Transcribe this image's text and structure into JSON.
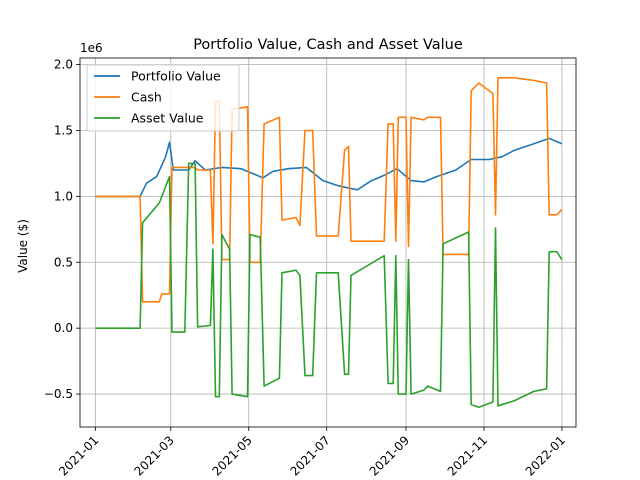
{
  "chart_data": {
    "type": "line",
    "title": "Portfolio Value, Cash and Asset Value",
    "xlabel": "",
    "ylabel": "Value ($)",
    "y_offset_text": "1e6",
    "xlim": [
      "2020-12-20",
      "2022-01-12"
    ],
    "ylim": [
      -0.75,
      2.05
    ],
    "y_ticks": [
      -0.5,
      0.0,
      0.5,
      1.0,
      1.5,
      2.0
    ],
    "y_tick_labels": [
      "−0.5",
      "0.0",
      "0.5",
      "1.0",
      "1.5",
      "2.0"
    ],
    "x_ticks": [
      "2021-01-01",
      "2021-03-01",
      "2021-05-01",
      "2021-07-01",
      "2021-09-01",
      "2021-11-01",
      "2022-01-01"
    ],
    "x_tick_labels": [
      "2021-01",
      "2021-03",
      "2021-05",
      "2021-07",
      "2021-09",
      "2021-11",
      "2022-01"
    ],
    "grid": true,
    "legend_position": "upper-left",
    "series": [
      {
        "name": "Portfolio Value",
        "color": "#1f77b4",
        "points": [
          [
            "2021-01-01",
            1.0
          ],
          [
            "2021-02-05",
            1.0
          ],
          [
            "2021-02-10",
            1.1
          ],
          [
            "2021-02-18",
            1.15
          ],
          [
            "2021-02-25",
            1.3
          ],
          [
            "2021-02-28",
            1.41
          ],
          [
            "2021-03-03",
            1.2
          ],
          [
            "2021-03-15",
            1.2
          ],
          [
            "2021-03-20",
            1.27
          ],
          [
            "2021-03-28",
            1.2
          ],
          [
            "2021-04-10",
            1.22
          ],
          [
            "2021-04-25",
            1.21
          ],
          [
            "2021-05-05",
            1.17
          ],
          [
            "2021-05-12",
            1.14
          ],
          [
            "2021-05-20",
            1.19
          ],
          [
            "2021-06-01",
            1.21
          ],
          [
            "2021-06-15",
            1.22
          ],
          [
            "2021-06-28",
            1.12
          ],
          [
            "2021-07-10",
            1.08
          ],
          [
            "2021-07-25",
            1.05
          ],
          [
            "2021-08-05",
            1.12
          ],
          [
            "2021-08-15",
            1.16
          ],
          [
            "2021-08-25",
            1.21
          ],
          [
            "2021-09-05",
            1.12
          ],
          [
            "2021-09-15",
            1.11
          ],
          [
            "2021-09-25",
            1.15
          ],
          [
            "2021-10-10",
            1.2
          ],
          [
            "2021-10-22",
            1.28
          ],
          [
            "2021-11-05",
            1.28
          ],
          [
            "2021-11-15",
            1.3
          ],
          [
            "2021-11-25",
            1.35
          ],
          [
            "2021-12-10",
            1.4
          ],
          [
            "2021-12-22",
            1.44
          ],
          [
            "2022-01-01",
            1.4
          ]
        ]
      },
      {
        "name": "Cash",
        "color": "#ff7f0e",
        "points": [
          [
            "2021-01-01",
            1.0
          ],
          [
            "2021-02-05",
            1.0
          ],
          [
            "2021-02-07",
            0.2
          ],
          [
            "2021-02-20",
            0.2
          ],
          [
            "2021-02-22",
            0.26
          ],
          [
            "2021-02-28",
            0.26
          ],
          [
            "2021-03-02",
            1.22
          ],
          [
            "2021-03-20",
            1.22
          ],
          [
            "2021-03-22",
            1.2
          ],
          [
            "2021-04-01",
            1.2
          ],
          [
            "2021-04-03",
            0.64
          ],
          [
            "2021-04-05",
            1.72
          ],
          [
            "2021-04-08",
            1.72
          ],
          [
            "2021-04-10",
            0.52
          ],
          [
            "2021-04-16",
            0.52
          ],
          [
            "2021-04-18",
            1.66
          ],
          [
            "2021-04-30",
            1.68
          ],
          [
            "2021-05-02",
            0.5
          ],
          [
            "2021-05-10",
            0.5
          ],
          [
            "2021-05-13",
            1.55
          ],
          [
            "2021-05-25",
            1.6
          ],
          [
            "2021-05-27",
            0.82
          ],
          [
            "2021-06-07",
            0.84
          ],
          [
            "2021-06-10",
            0.78
          ],
          [
            "2021-06-14",
            1.5
          ],
          [
            "2021-06-20",
            1.5
          ],
          [
            "2021-06-23",
            0.7
          ],
          [
            "2021-07-10",
            0.7
          ],
          [
            "2021-07-15",
            1.35
          ],
          [
            "2021-07-18",
            1.38
          ],
          [
            "2021-07-20",
            0.66
          ],
          [
            "2021-08-15",
            0.66
          ],
          [
            "2021-08-18",
            1.55
          ],
          [
            "2021-08-22",
            1.55
          ],
          [
            "2021-08-24",
            0.66
          ],
          [
            "2021-08-26",
            1.6
          ],
          [
            "2021-09-01",
            1.6
          ],
          [
            "2021-09-03",
            0.62
          ],
          [
            "2021-09-05",
            1.6
          ],
          [
            "2021-09-15",
            1.58
          ],
          [
            "2021-09-18",
            1.6
          ],
          [
            "2021-09-28",
            1.6
          ],
          [
            "2021-09-30",
            0.56
          ],
          [
            "2021-10-20",
            0.56
          ],
          [
            "2021-10-22",
            1.8
          ],
          [
            "2021-10-28",
            1.86
          ],
          [
            "2021-11-08",
            1.78
          ],
          [
            "2021-11-10",
            0.86
          ],
          [
            "2021-11-12",
            1.9
          ],
          [
            "2021-11-25",
            1.9
          ],
          [
            "2021-12-10",
            1.88
          ],
          [
            "2021-12-20",
            1.86
          ],
          [
            "2021-12-22",
            0.86
          ],
          [
            "2021-12-28",
            0.86
          ],
          [
            "2022-01-01",
            0.9
          ]
        ]
      },
      {
        "name": "Asset Value",
        "color": "#2ca02c",
        "points": [
          [
            "2021-01-01",
            0.0
          ],
          [
            "2021-02-05",
            0.0
          ],
          [
            "2021-02-07",
            0.8
          ],
          [
            "2021-02-20",
            0.95
          ],
          [
            "2021-02-28",
            1.15
          ],
          [
            "2021-03-02",
            -0.03
          ],
          [
            "2021-03-12",
            -0.03
          ],
          [
            "2021-03-15",
            1.25
          ],
          [
            "2021-03-20",
            1.25
          ],
          [
            "2021-03-22",
            0.01
          ],
          [
            "2021-04-01",
            0.02
          ],
          [
            "2021-04-03",
            0.6
          ],
          [
            "2021-04-05",
            -0.52
          ],
          [
            "2021-04-08",
            -0.52
          ],
          [
            "2021-04-10",
            0.71
          ],
          [
            "2021-04-16",
            0.6
          ],
          [
            "2021-04-18",
            -0.5
          ],
          [
            "2021-04-30",
            -0.52
          ],
          [
            "2021-05-02",
            0.71
          ],
          [
            "2021-05-10",
            0.69
          ],
          [
            "2021-05-13",
            -0.44
          ],
          [
            "2021-05-25",
            -0.38
          ],
          [
            "2021-05-27",
            0.42
          ],
          [
            "2021-06-07",
            0.44
          ],
          [
            "2021-06-10",
            0.4
          ],
          [
            "2021-06-14",
            -0.36
          ],
          [
            "2021-06-20",
            -0.36
          ],
          [
            "2021-06-23",
            0.42
          ],
          [
            "2021-07-10",
            0.42
          ],
          [
            "2021-07-15",
            -0.35
          ],
          [
            "2021-07-18",
            -0.35
          ],
          [
            "2021-07-20",
            0.4
          ],
          [
            "2021-08-15",
            0.55
          ],
          [
            "2021-08-18",
            -0.42
          ],
          [
            "2021-08-22",
            -0.42
          ],
          [
            "2021-08-24",
            0.55
          ],
          [
            "2021-08-26",
            -0.5
          ],
          [
            "2021-09-01",
            -0.5
          ],
          [
            "2021-09-03",
            0.52
          ],
          [
            "2021-09-05",
            -0.5
          ],
          [
            "2021-09-15",
            -0.47
          ],
          [
            "2021-09-18",
            -0.44
          ],
          [
            "2021-09-28",
            -0.48
          ],
          [
            "2021-09-30",
            0.64
          ],
          [
            "2021-10-20",
            0.73
          ],
          [
            "2021-10-22",
            -0.58
          ],
          [
            "2021-10-28",
            -0.6
          ],
          [
            "2021-11-08",
            -0.56
          ],
          [
            "2021-11-10",
            0.76
          ],
          [
            "2021-11-12",
            -0.59
          ],
          [
            "2021-11-25",
            -0.55
          ],
          [
            "2021-12-10",
            -0.48
          ],
          [
            "2021-12-20",
            -0.46
          ],
          [
            "2021-12-22",
            0.58
          ],
          [
            "2021-12-28",
            0.58
          ],
          [
            "2022-01-01",
            0.52
          ]
        ]
      }
    ]
  }
}
